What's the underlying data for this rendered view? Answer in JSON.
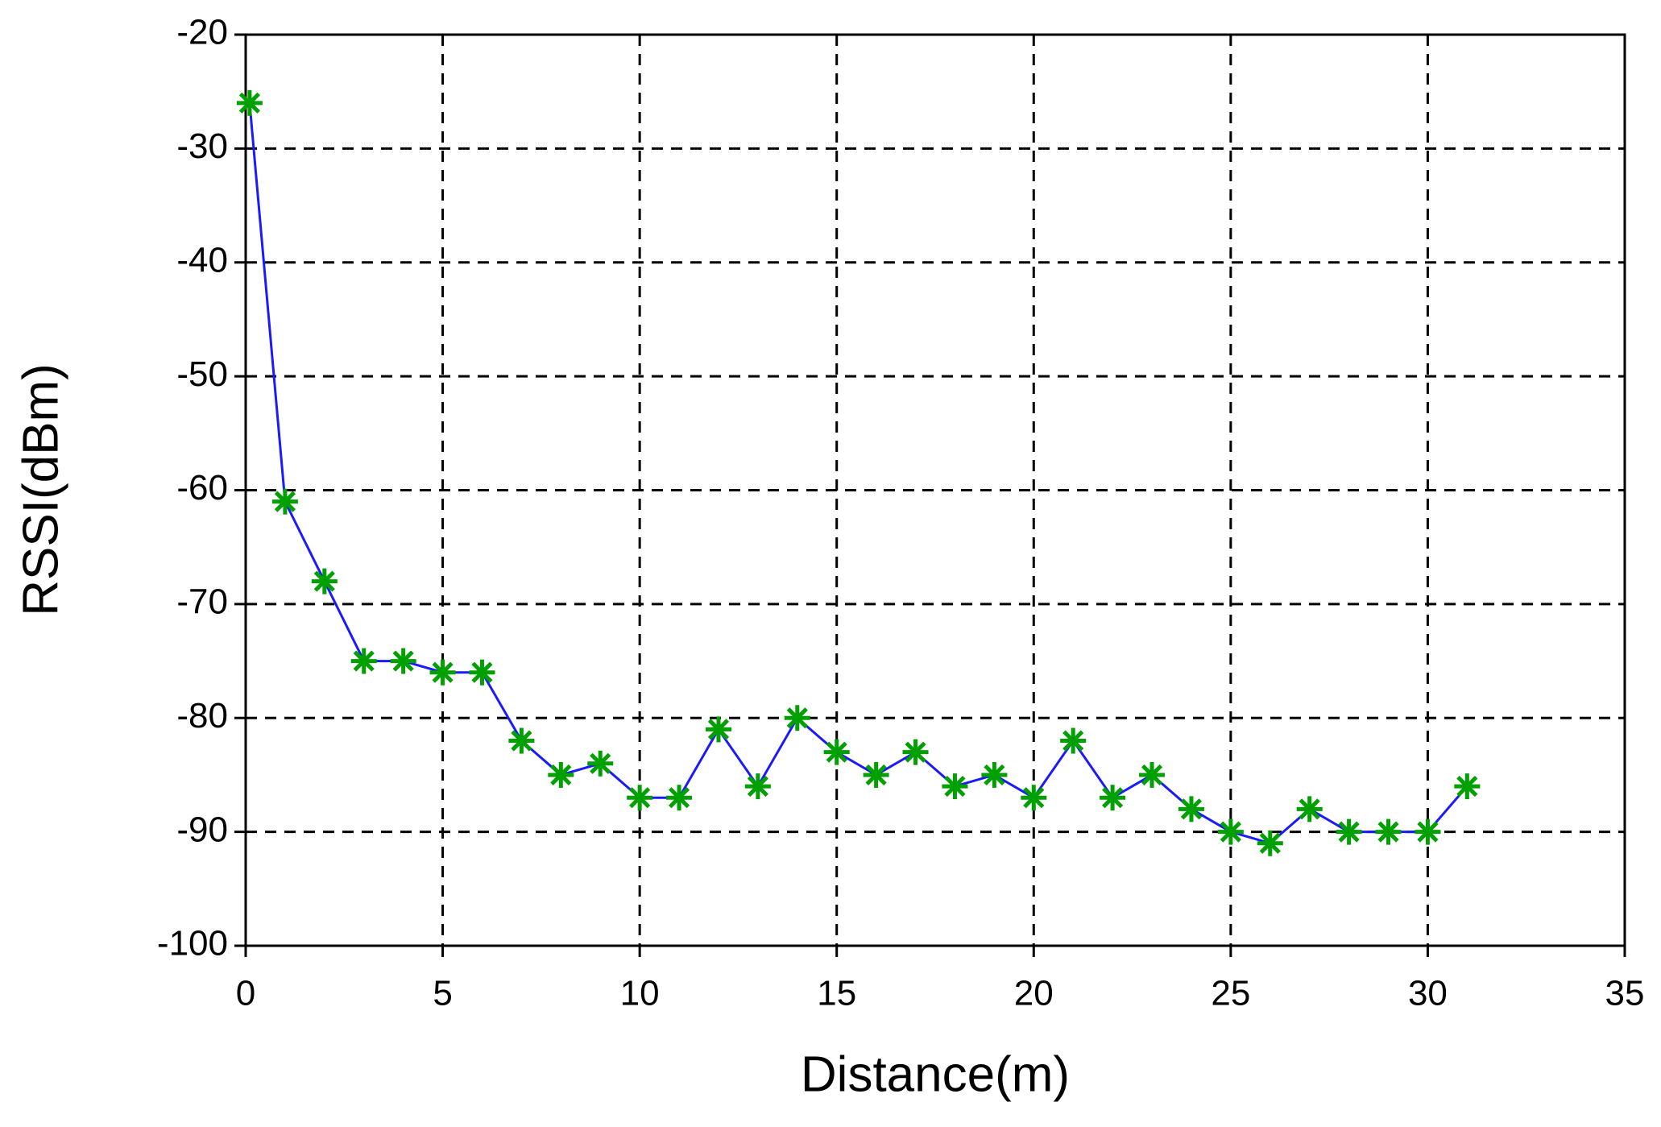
{
  "chart_data": {
    "type": "line",
    "x_label": "Distance(m)",
    "y_label": "RSSI(dBm)",
    "x": [
      0.1,
      1,
      2,
      3,
      4,
      5,
      6,
      7,
      8,
      9,
      10,
      11,
      12,
      13,
      14,
      15,
      16,
      17,
      18,
      19,
      20,
      21,
      22,
      23,
      24,
      25,
      26,
      27,
      28,
      29,
      30,
      31
    ],
    "series": [
      {
        "line_color": "#1a1aff",
        "marker_color": "#00a000",
        "values": [
          -26,
          -61,
          -68,
          -75,
          -75,
          -76,
          -76,
          -82,
          -85,
          -84,
          -87,
          -87,
          -81,
          -86,
          -80,
          -83,
          -85,
          -83,
          -86,
          -85,
          -87,
          -82,
          -87,
          -85,
          -88,
          -90,
          -91,
          -88,
          -90,
          -90,
          -90,
          -86
        ]
      }
    ],
    "xlim": [
      0,
      35
    ],
    "xticks": [
      0,
      5,
      10,
      15,
      20,
      25,
      30,
      35
    ],
    "ylim": [
      -100,
      -20
    ],
    "yticks": [
      -100,
      -90,
      -80,
      -70,
      -60,
      -50,
      -40,
      -30,
      -20
    ],
    "grid": true
  }
}
